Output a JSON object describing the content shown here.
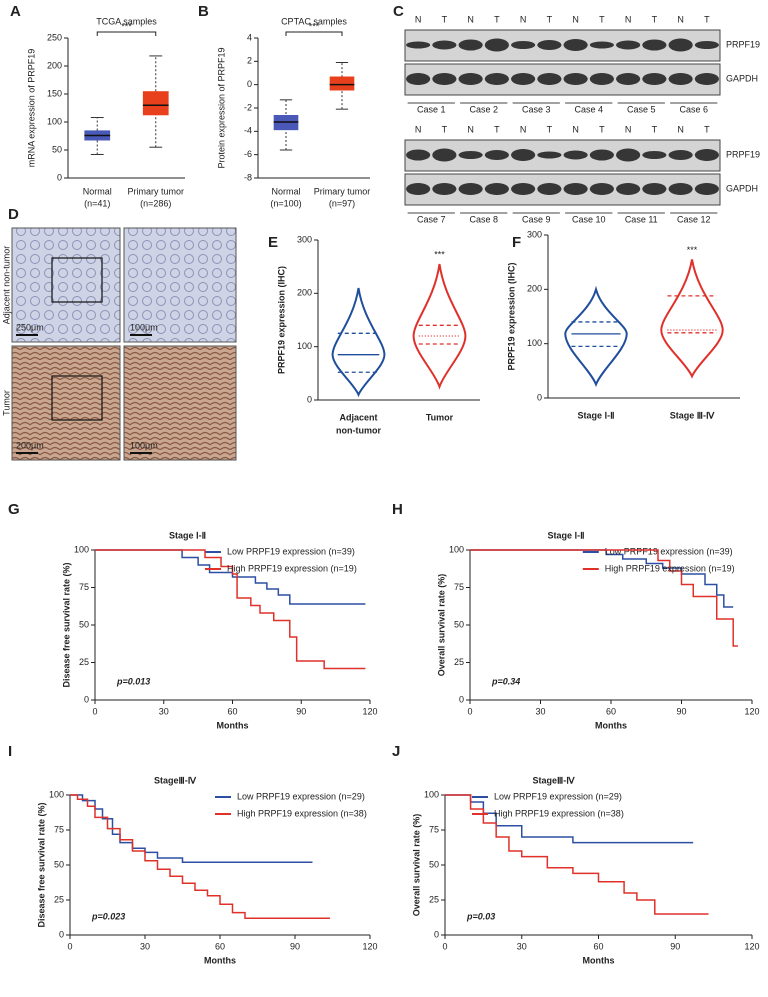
{
  "chart_data": [
    {
      "type": "box",
      "panel": "A",
      "title": "TCGA samples",
      "y_label": "mRNA expression of PRPF19",
      "categories": [
        "Normal",
        "Primary tumor"
      ],
      "sample_sizes": [
        "(n=41)",
        "(n=286)"
      ],
      "significance": "***",
      "ylim": [
        0,
        250
      ],
      "yticks": [
        0,
        50,
        100,
        150,
        200,
        250
      ],
      "series": [
        {
          "color": "#4a58b8",
          "min": 42,
          "q1": 67,
          "median": 76,
          "q3": 85,
          "max": 108
        },
        {
          "color": "#e8401c",
          "min": 55,
          "q1": 112,
          "median": 130,
          "q3": 155,
          "max": 218
        }
      ]
    },
    {
      "type": "box",
      "panel": "B",
      "title": "CPTAC samples",
      "y_label": "Protein expression of  PRPF19",
      "categories": [
        "Normal",
        "Primary tumor"
      ],
      "sample_sizes": [
        "(n=100)",
        "(n=97)"
      ],
      "significance": "***",
      "ylim": [
        -8,
        4
      ],
      "yticks": [
        -8,
        -6,
        -4,
        -2,
        0,
        2,
        4
      ],
      "series": [
        {
          "color": "#4a58b8",
          "min": -5.6,
          "q1": -3.9,
          "median": -3.2,
          "q3": -2.6,
          "max": -1.3
        },
        {
          "color": "#e8401c",
          "min": -2.1,
          "q1": -0.5,
          "median": 0,
          "q3": 0.7,
          "max": 1.9
        }
      ]
    },
    {
      "type": "violin",
      "panel": "E",
      "y_label": "PRPF19 expression (IHC)",
      "categories": [
        "Adjacent",
        "Tumor"
      ],
      "category_sublabels": [
        "non-tumor",
        null
      ],
      "significance": "***",
      "ylim": [
        0,
        300
      ],
      "yticks": [
        0,
        100,
        200,
        300
      ],
      "series": [
        {
          "color": "#1f4e9c",
          "min": 10,
          "q1": 52,
          "median": 85,
          "q3": 125,
          "max": 210
        },
        {
          "color": "#e0302a",
          "min": 25,
          "q1": 105,
          "median": 120,
          "q3": 140,
          "max": 255
        }
      ]
    },
    {
      "type": "violin",
      "panel": "F",
      "y_label": "PRPF19 expression (IHC)",
      "categories": [
        "Stage Ⅰ-Ⅱ",
        "Stage Ⅲ-Ⅳ"
      ],
      "category_sublabels": [
        null,
        null
      ],
      "significance": "***",
      "ylim": [
        0,
        300
      ],
      "yticks": [
        0,
        100,
        200,
        300
      ],
      "series": [
        {
          "color": "#1f4e9c",
          "min": 25,
          "q1": 95,
          "median": 118,
          "q3": 140,
          "max": 200
        },
        {
          "color": "#e0302a",
          "min": 40,
          "q1": 120,
          "median": 125,
          "q3": 188,
          "max": 255
        }
      ]
    },
    {
      "type": "line",
      "panel": "G",
      "title": "Stage Ⅰ-Ⅱ",
      "y_label": "Disease free survival rate (%)",
      "x_label": "Months",
      "annotation": "p=0.013",
      "xlim": [
        0,
        120
      ],
      "xticks": [
        0,
        30,
        60,
        90,
        120
      ],
      "ylim": [
        0,
        100
      ],
      "yticks": [
        0,
        25,
        50,
        75,
        100
      ],
      "series": [
        {
          "name": "Low PRPF19 expression (n=39)",
          "color": "#2d4fa3",
          "x": [
            0,
            30,
            38,
            45,
            50,
            60,
            70,
            75,
            80,
            85,
            118
          ],
          "values": [
            100,
            100,
            95,
            90,
            85,
            82,
            78,
            74,
            70,
            64,
            64
          ]
        },
        {
          "name": "High PRPF19 expression (n=19)",
          "color": "#e0302a",
          "x": [
            0,
            40,
            48,
            55,
            60,
            62,
            68,
            72,
            78,
            85,
            88,
            100,
            118
          ],
          "values": [
            100,
            100,
            95,
            89,
            84,
            68,
            63,
            58,
            53,
            42,
            26,
            21,
            21
          ]
        }
      ]
    },
    {
      "type": "line",
      "panel": "H",
      "title": "Stage Ⅰ-Ⅱ",
      "y_label": "Overall survival rate (%)",
      "x_label": "Months",
      "annotation": "p=0.34",
      "xlim": [
        0,
        120
      ],
      "xticks": [
        0,
        30,
        60,
        90,
        120
      ],
      "ylim": [
        0,
        100
      ],
      "yticks": [
        0,
        25,
        50,
        75,
        100
      ],
      "series": [
        {
          "name": "Low PRPF19 expression (n=39)",
          "color": "#2d4fa3",
          "x": [
            0,
            58,
            65,
            75,
            82,
            90,
            100,
            105,
            108,
            112
          ],
          "values": [
            100,
            97,
            94,
            91,
            88,
            84,
            77,
            70,
            62,
            62
          ]
        },
        {
          "name": "High PRPF19 expression (n=19)",
          "color": "#e0302a",
          "x": [
            0,
            60,
            80,
            85,
            90,
            95,
            105,
            110,
            112,
            114
          ],
          "values": [
            100,
            100,
            93,
            86,
            77,
            69,
            54,
            54,
            36,
            36
          ]
        }
      ]
    },
    {
      "type": "line",
      "panel": "I",
      "title": "StageⅢ-Ⅳ",
      "y_label": "Disease free survival rate (%)",
      "x_label": "Months",
      "annotation": "p=0.023",
      "xlim": [
        0,
        120
      ],
      "xticks": [
        0,
        30,
        60,
        90,
        120
      ],
      "ylim": [
        0,
        100
      ],
      "yticks": [
        0,
        25,
        50,
        75,
        100
      ],
      "series": [
        {
          "name": "Low PRPF19 expression (n=29)",
          "color": "#2d4fa3",
          "x": [
            0,
            5,
            10,
            13,
            17,
            20,
            25,
            30,
            35,
            45,
            50,
            97
          ],
          "values": [
            100,
            96,
            90,
            83,
            72,
            66,
            62,
            59,
            55,
            52,
            52,
            52
          ]
        },
        {
          "name": "High PRPF19 expression (n=38)",
          "color": "#e0302a",
          "x": [
            0,
            3,
            7,
            10,
            15,
            20,
            25,
            30,
            35,
            40,
            45,
            50,
            55,
            60,
            65,
            70,
            104
          ],
          "values": [
            100,
            97,
            92,
            84,
            76,
            68,
            60,
            53,
            47,
            42,
            37,
            32,
            28,
            22,
            16,
            12,
            12
          ]
        }
      ]
    },
    {
      "type": "line",
      "panel": "J",
      "title": "StageⅢ-Ⅳ",
      "y_label": "Overall survival rate (%)",
      "x_label": "Months",
      "annotation": "p=0.03",
      "xlim": [
        0,
        120
      ],
      "xticks": [
        0,
        30,
        60,
        90,
        120
      ],
      "ylim": [
        0,
        100
      ],
      "yticks": [
        0,
        25,
        50,
        75,
        100
      ],
      "series": [
        {
          "name": "Low PRPF19 expression (n=29)",
          "color": "#2d4fa3",
          "x": [
            0,
            10,
            15,
            20,
            30,
            50,
            97
          ],
          "values": [
            100,
            95,
            87,
            78,
            70,
            66,
            66
          ]
        },
        {
          "name": "High PRPF19 expression (n=38)",
          "color": "#e0302a",
          "x": [
            0,
            10,
            15,
            20,
            25,
            30,
            40,
            50,
            60,
            70,
            75,
            82,
            103
          ],
          "values": [
            100,
            90,
            80,
            70,
            60,
            56,
            48,
            44,
            38,
            30,
            25,
            15,
            15
          ]
        }
      ]
    }
  ],
  "blots": {
    "panel": "C",
    "lane_labels": [
      "N",
      "T"
    ],
    "proteins": [
      "PRPF19",
      "GAPDH"
    ],
    "groups": [
      {
        "cases": [
          "Case 1",
          "Case 2",
          "Case 3",
          "Case 4",
          "Case 5",
          "Case 6"
        ]
      },
      {
        "cases": [
          "Case 7",
          "Case 8",
          "Case 9",
          "Case 10",
          "Case 11",
          "Case 12"
        ]
      }
    ]
  },
  "ihc": {
    "panel": "D",
    "rows": [
      "Adjacent non-tumor",
      "Tumor"
    ],
    "scale_bars": [
      [
        "250μm",
        "100μm"
      ],
      [
        "200μm",
        "100μm"
      ]
    ]
  }
}
